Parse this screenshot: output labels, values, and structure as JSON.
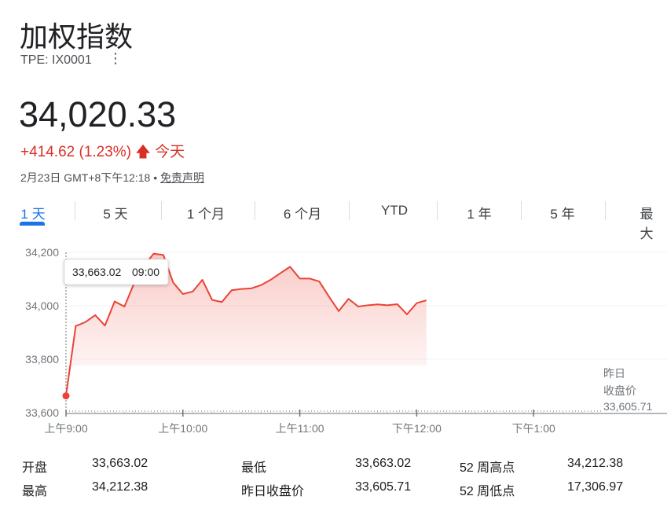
{
  "header": {
    "title": "加权指数",
    "ticker": "TPE: IX0001",
    "more_icon": "more-vert-icon"
  },
  "quote": {
    "price": "34,020.33",
    "change": "+414.62 (1.23%)",
    "change_icon": "arrow-up-icon",
    "period": "今天",
    "date_time": "2月23日 GMT+8下午12:18 •",
    "disclaimer": "免责声明",
    "up_color": "#d93025"
  },
  "tabs": [
    {
      "label": "1 天",
      "active": true
    },
    {
      "label": "5 天"
    },
    {
      "label": "1 个月"
    },
    {
      "label": "6 个月"
    },
    {
      "label": "YTD"
    },
    {
      "label": "1 年"
    },
    {
      "label": "5 年"
    },
    {
      "label": "最大"
    }
  ],
  "chart_data": {
    "type": "area",
    "y_ticks": [
      "34,200",
      "34,000",
      "33,800",
      "33,600"
    ],
    "y_tick_values": [
      34200,
      34000,
      33800,
      33600
    ],
    "ylim": [
      33600,
      34200
    ],
    "x_ticks": [
      "上午9:00",
      "上午10:00",
      "上午11:00",
      "下午12:00",
      "下午1:00"
    ],
    "x_range": [
      "09:00",
      "13:30"
    ],
    "line_color": "#ea4335",
    "grid": true,
    "tooltip": {
      "value": "33,663.02",
      "time": "09:00"
    },
    "previous_close": {
      "label_line1": "昨日",
      "label_line2": "收盘价",
      "value": "33,605.71",
      "numeric": 33605.71
    },
    "x": [
      "09:00",
      "09:05",
      "09:10",
      "09:15",
      "09:20",
      "09:25",
      "09:30",
      "09:35",
      "09:40",
      "09:45",
      "09:50",
      "09:55",
      "10:00",
      "10:05",
      "10:10",
      "10:15",
      "10:20",
      "10:25",
      "10:30",
      "10:35",
      "10:40",
      "10:45",
      "10:50",
      "10:55",
      "11:00",
      "11:05",
      "11:10",
      "11:15",
      "11:20",
      "11:25",
      "11:30",
      "11:35",
      "11:40",
      "11:45",
      "11:50",
      "11:55",
      "12:00",
      "12:05"
    ],
    "values": [
      33663.02,
      33924,
      33939,
      33965,
      33926,
      34016,
      33997,
      34085,
      34150,
      34195,
      34190,
      34087,
      34044,
      34053,
      34097,
      34022,
      34014,
      34058,
      34063,
      34065,
      34077,
      34097,
      34122,
      34146,
      34102,
      34102,
      34091,
      34034,
      33980,
      34026,
      33997,
      34002,
      34005,
      34002,
      34006,
      33968,
      34010,
      34020.33
    ]
  },
  "stats": {
    "col1": [
      {
        "label": "开盘",
        "value": "33,663.02"
      },
      {
        "label": "最高",
        "value": "34,212.38"
      }
    ],
    "col2": [
      {
        "label": "最低",
        "value": "33,663.02"
      },
      {
        "label": "昨日收盘价",
        "value": "33,605.71"
      }
    ],
    "col3": [
      {
        "label": "52 周高点",
        "value": "34,212.38"
      },
      {
        "label": "52 周低点",
        "value": "17,306.97"
      }
    ]
  }
}
